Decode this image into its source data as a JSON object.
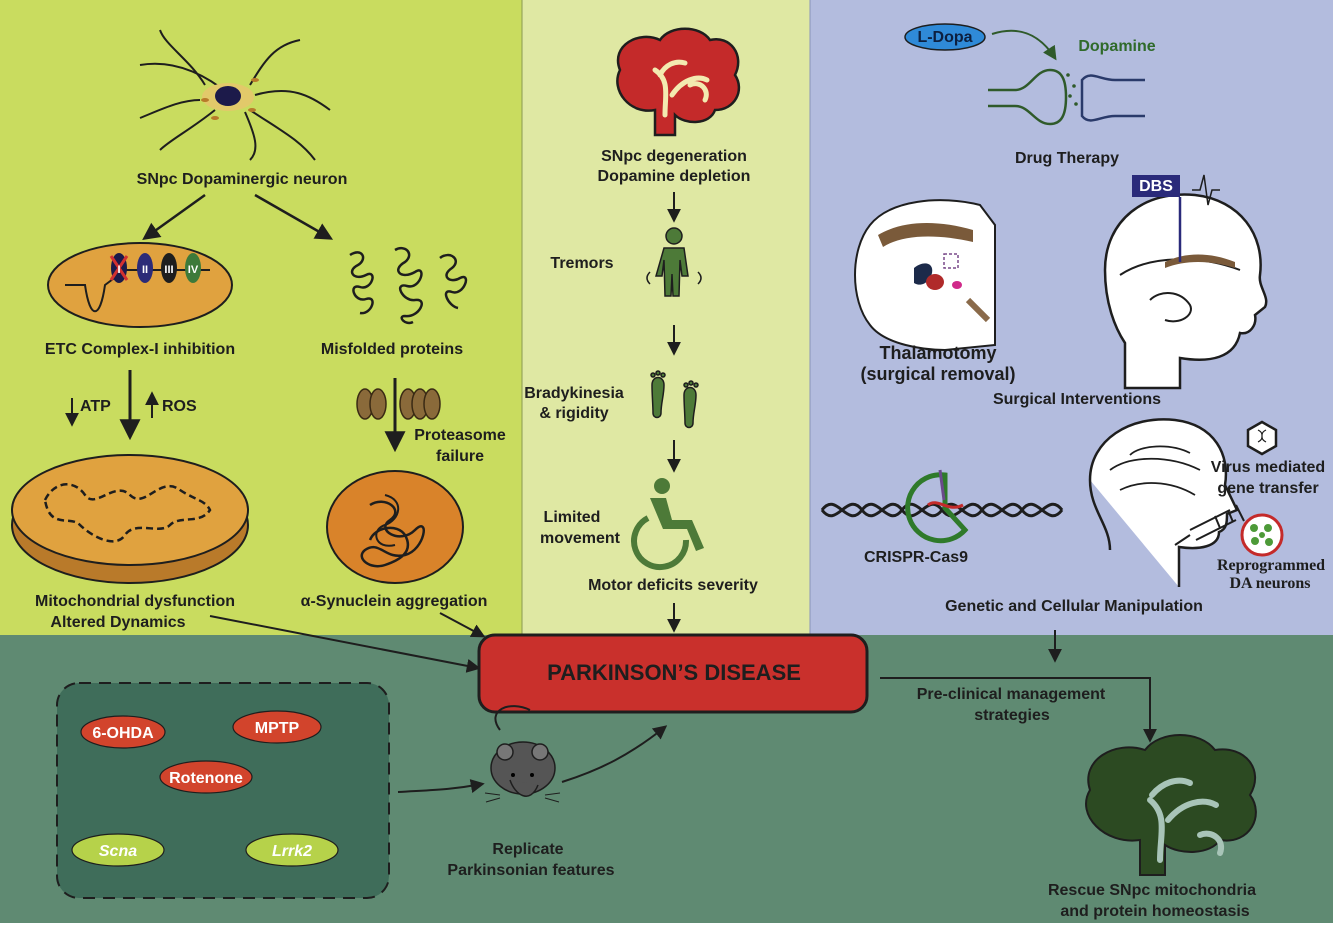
{
  "panels": {
    "left": {
      "neuron": "SNpc Dopaminergic neuron",
      "etc": "ETC Complex-I inhibition",
      "complexes": [
        "I",
        "II",
        "III",
        "IV"
      ],
      "misfolded": "Misfolded proteins",
      "atp": "ATP",
      "ros": "ROS",
      "proteasome": [
        "Proteasome",
        "failure"
      ],
      "mito": [
        "Mitochondrial dysfunction",
        "Altered Dynamics"
      ],
      "synuclein": "α-Synuclein aggregation"
    },
    "middle": {
      "degeneration": [
        "SNpc degeneration",
        "Dopamine depletion"
      ],
      "tremors": "Tremors",
      "brady": [
        "Bradykinesia",
        "& rigidity"
      ],
      "limited": [
        "Limited",
        "movement"
      ],
      "severity": "Motor deficits severity"
    },
    "right": {
      "ldopa": "L-Dopa",
      "dopamine": "Dopamine",
      "drug": "Drug Therapy",
      "dbs": "DBS",
      "thalamotomy": [
        "Thalamotomy",
        "(surgical removal)"
      ],
      "surgical": "Surgical Interventions",
      "crispr": "CRISPR-Cas9",
      "virus": [
        "Virus mediated",
        "gene transfer"
      ],
      "reprog": [
        "Reprogrammed",
        "DA neurons"
      ],
      "genetic": "Genetic and Cellular Manipulation"
    },
    "bottom": {
      "disease": "PARKINSON’S DISEASE",
      "toxins": [
        "6-OHDA",
        "MPTP",
        "Rotenone"
      ],
      "genes": [
        "Scna",
        "Lrrk2"
      ],
      "replicate": [
        "Replicate",
        "Parkinsonian features"
      ],
      "preclinical": [
        "Pre-clinical management",
        "strategies"
      ],
      "rescue": [
        "Rescue SNpc mitochondria",
        "and protein homeostasis"
      ]
    }
  },
  "colors": {
    "left_bg": "#c9dc5f",
    "middle_bg": "#dfe8a3",
    "right_bg": "#b3bcde",
    "bottom_bg": "#5f8a72",
    "disease_red": "#c9302c",
    "toxin_red": "#d2442c",
    "gene_green": "#b6d24a",
    "figure_green": "#4d7a38",
    "mito_orange": "#e0a23f",
    "brain_dark": "#2c4a22"
  }
}
